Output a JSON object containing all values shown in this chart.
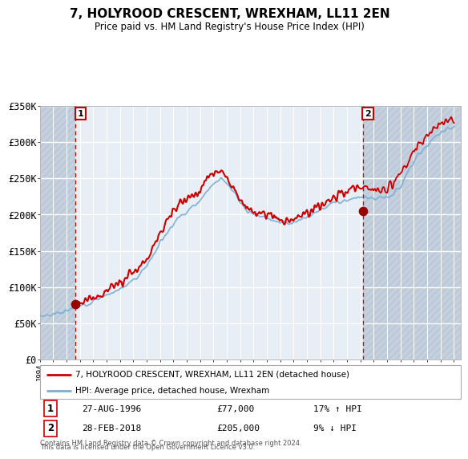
{
  "title": "7, HOLYROOD CRESCENT, WREXHAM, LL11 2EN",
  "subtitle": "Price paid vs. HM Land Registry's House Price Index (HPI)",
  "sale1_year": 1996.667,
  "sale1_price": 77000,
  "sale2_year": 2018.167,
  "sale2_price": 205000,
  "legend_line1": "7, HOLYROOD CRESCENT, WREXHAM, LL11 2EN (detached house)",
  "legend_line2": "HPI: Average price, detached house, Wrexham",
  "footer1": "Contains HM Land Registry data © Crown copyright and database right 2024.",
  "footer2": "This data is licensed under the Open Government Licence v3.0.",
  "info1_date": "27-AUG-1996",
  "info1_price": "£77,000",
  "info1_hpi": "17% ↑ HPI",
  "info2_date": "28-FEB-2018",
  "info2_price": "£205,000",
  "info2_hpi": "9% ↓ HPI",
  "hpi_color": "#7bafd4",
  "price_color": "#cc0000",
  "dot_color": "#990000",
  "vline_color": "#cc0000",
  "bg_main": "#dde6f0",
  "bg_owned": "#e8eef5",
  "hatch_color": "#c5d0de",
  "grid_color": "#ffffff",
  "ylim": [
    0,
    350000
  ],
  "xlim_start": 1994.0,
  "xlim_end": 2025.5,
  "yticks": [
    0,
    50000,
    100000,
    150000,
    200000,
    250000,
    300000,
    350000
  ],
  "ytick_labels": [
    "£0",
    "£50K",
    "£100K",
    "£150K",
    "£200K",
    "£250K",
    "£300K",
    "£350K"
  ]
}
